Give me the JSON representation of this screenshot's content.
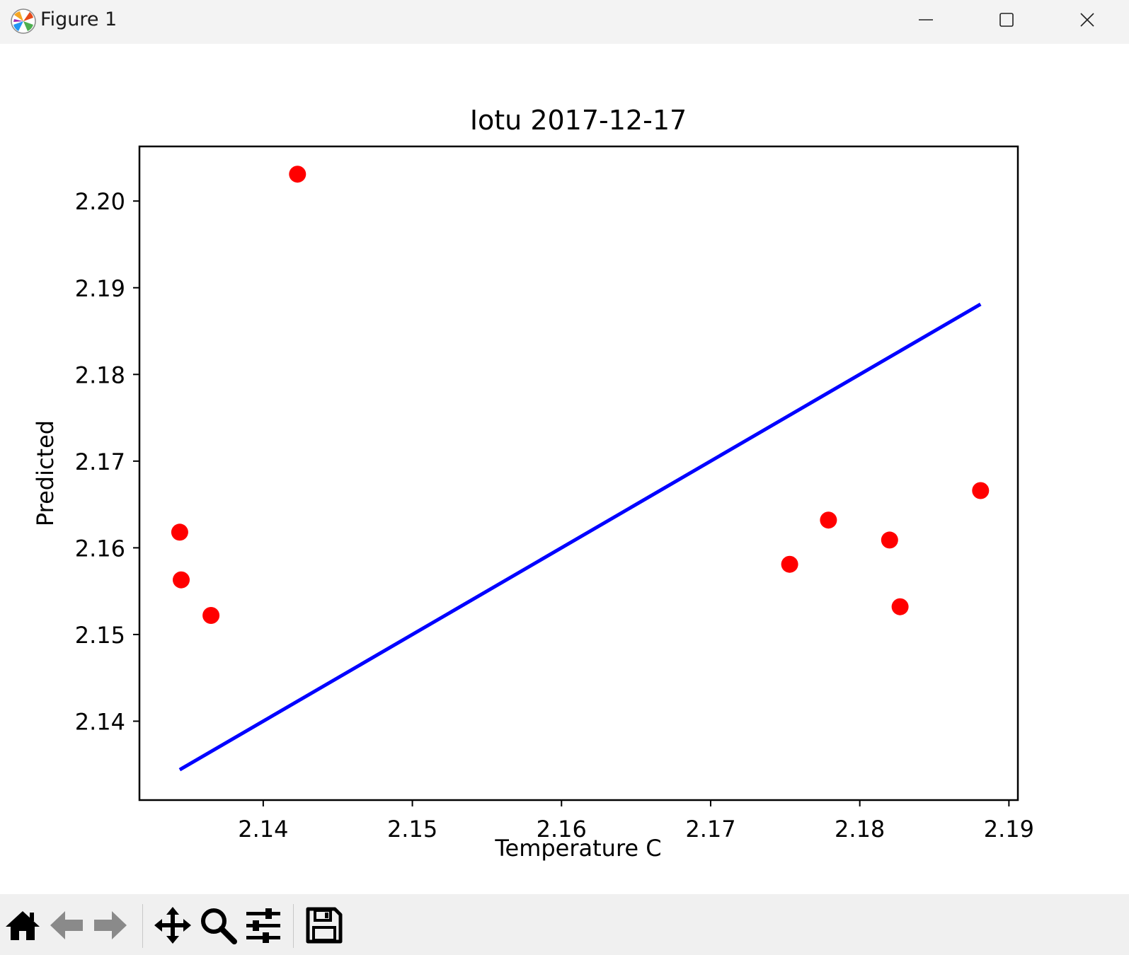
{
  "window": {
    "title": "Figure 1",
    "icon": "matplotlib-logo-icon",
    "controls": [
      "minimize-icon",
      "maximize-icon",
      "close-icon"
    ]
  },
  "toolbar": {
    "buttons": [
      "home-icon",
      "back-arrow-icon",
      "forward-arrow-icon",
      "pan-move-icon",
      "zoom-magnifier-icon",
      "configure-subplots-icon",
      "save-floppy-icon"
    ]
  },
  "chart_data": {
    "type": "scatter",
    "title": "Iotu 2017-12-17",
    "xlabel": "Temperature C",
    "ylabel": "Predicted",
    "xlim": [
      2.1317,
      2.1906
    ],
    "ylim": [
      2.1309,
      2.2063
    ],
    "xticks": [
      "2.14",
      "2.15",
      "2.16",
      "2.17",
      "2.18",
      "2.19"
    ],
    "xtick_values": [
      2.14,
      2.15,
      2.16,
      2.17,
      2.18,
      2.19
    ],
    "yticks": [
      "2.14",
      "2.15",
      "2.16",
      "2.17",
      "2.18",
      "2.19",
      "2.20"
    ],
    "ytick_values": [
      2.14,
      2.15,
      2.16,
      2.17,
      2.18,
      2.19,
      2.2
    ],
    "grid": false,
    "series": [
      {
        "kind": "scatter",
        "color": "#ff0000",
        "points": [
          {
            "x": 2.1344,
            "y": 2.1618
          },
          {
            "x": 2.1345,
            "y": 2.1563
          },
          {
            "x": 2.1365,
            "y": 2.1522
          },
          {
            "x": 2.1423,
            "y": 2.2031
          },
          {
            "x": 2.1753,
            "y": 2.1581
          },
          {
            "x": 2.1779,
            "y": 2.1632
          },
          {
            "x": 2.182,
            "y": 2.1609
          },
          {
            "x": 2.1827,
            "y": 2.1532
          },
          {
            "x": 2.1881,
            "y": 2.1666
          }
        ]
      },
      {
        "kind": "line",
        "color": "#0000ff",
        "points": [
          {
            "x": 2.1344,
            "y": 2.1344
          },
          {
            "x": 2.1881,
            "y": 2.1881
          }
        ]
      }
    ]
  }
}
